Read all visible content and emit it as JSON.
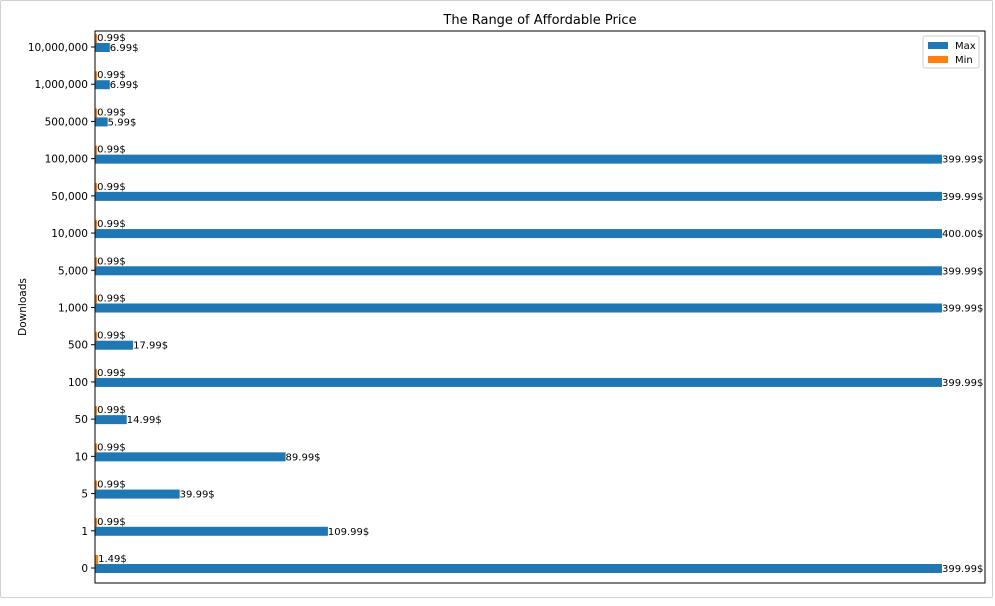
{
  "chart_data": {
    "type": "bar",
    "orientation": "horizontal",
    "title": "The Range of Affordable Price",
    "xlabel": "",
    "ylabel": "Downloads",
    "categories": [
      "0",
      "1",
      "5",
      "10",
      "50",
      "100",
      "500",
      "1,000",
      "5,000",
      "10,000",
      "50,000",
      "100,000",
      "500,000",
      "1,000,000",
      "10,000,000"
    ],
    "series": [
      {
        "name": "Max",
        "color": "#1f77b4",
        "values": [
          399.99,
          109.99,
          39.99,
          89.99,
          14.99,
          399.99,
          17.99,
          399.99,
          399.99,
          400.0,
          399.99,
          399.99,
          5.99,
          6.99,
          6.99
        ],
        "labels": [
          "399.99$",
          "109.99$",
          "39.99$",
          "89.99$",
          "14.99$",
          "399.99$",
          "17.99$",
          "399.99$",
          "399.99$",
          "400.00$",
          "399.99$",
          "399.99$",
          "5.99$",
          "6.99$",
          "6.99$"
        ]
      },
      {
        "name": "Min",
        "color": "#ff7f0e",
        "values": [
          1.49,
          0.99,
          0.99,
          0.99,
          0.99,
          0.99,
          0.99,
          0.99,
          0.99,
          0.99,
          0.99,
          0.99,
          0.99,
          0.99,
          0.99
        ],
        "labels": [
          "1.49$",
          "0.99$",
          "0.99$",
          "0.99$",
          "0.99$",
          "0.99$",
          "0.99$",
          "0.99$",
          "0.99$",
          "0.99$",
          "0.99$",
          "0.99$",
          "0.99$",
          "0.99$",
          "0.99$"
        ]
      }
    ],
    "xlim": [
      0,
      420
    ],
    "grid": false,
    "legend": "top-right",
    "xticks_visible": false
  }
}
